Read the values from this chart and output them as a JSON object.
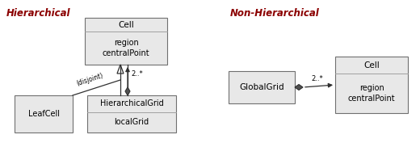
{
  "bg_color": "#ffffff",
  "title_left": "Hierarchical",
  "title_right": "Non-Hierarchical",
  "title_color": "#8b0000",
  "title_fontsize": 8.5,
  "hier_cell_name": "Cell",
  "hier_cell_attrs": "region\ncentralPoint",
  "hier_grid_name": "HierarchicalGrid",
  "hier_grid_attrs": "localGrid",
  "leaf_name": "LeafCell",
  "nonhier_global_name": "GlobalGrid",
  "nonhier_cell_name": "Cell",
  "nonhier_cell_attrs": "region\ncentralPoint",
  "multiplicity_hier": "2..*",
  "multiplicity_nonhier": "2..*",
  "disjoint_label": "(disjoint)",
  "box_face_light": "#e8e8e8",
  "box_face_white": "#f5f5f5",
  "box_edge": "#707070",
  "line_color": "#303030",
  "divider_color": "#a0a0a0",
  "diamond_color": "#505050"
}
